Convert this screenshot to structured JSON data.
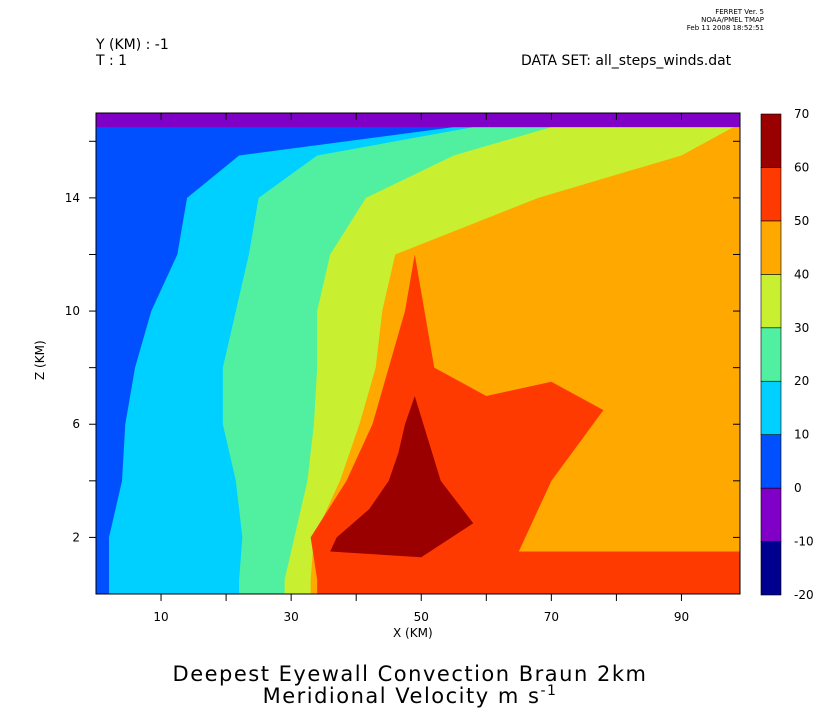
{
  "header": {
    "y_label": "Y (KM) : -1",
    "t_label": "T : 1",
    "dataset": "DATA SET: all_steps_winds.dat",
    "credit_line1": "FERRET Ver. 5",
    "credit_line2": "NOAA/PMEL TMAP",
    "credit_line3": "Feb 11 2008 18:52:51"
  },
  "chart_data": {
    "type": "heatmap",
    "subtype": "filled-contour",
    "title_line1": "Deepest Eyewall Convection Braun 2km",
    "title_line2_text": "Meridional Velocity m s",
    "title_line2_superscript": "-1",
    "xlabel": "X (KM)",
    "ylabel": "Z (KM)",
    "xlim": [
      0,
      99
    ],
    "ylim": [
      0,
      17
    ],
    "x_tick_labels": [
      "10",
      "30",
      "50",
      "70",
      "90"
    ],
    "y_tick_labels": [
      "2",
      "6",
      "10",
      "14"
    ],
    "colorbar": {
      "levels": [
        -20,
        -10,
        0,
        10,
        20,
        30,
        40,
        50,
        60,
        70
      ],
      "tick_labels": [
        "-20",
        "-10",
        "0",
        "10",
        "20",
        "30",
        "40",
        "50",
        "60",
        "70"
      ],
      "colors": [
        "#00008f",
        "#8000c8",
        "#0050ff",
        "#00d0ff",
        "#50f0a0",
        "#c8f030",
        "#ffa800",
        "#ff3a00",
        "#9a0000"
      ]
    },
    "contours": [
      {
        "level": 10,
        "z": [
          0.5,
          2,
          4,
          6,
          8,
          10,
          12,
          14,
          15.5,
          16.5
        ],
        "x": [
          2,
          2,
          4,
          4.5,
          6,
          8.5,
          12.5,
          14,
          22,
          55
        ]
      },
      {
        "level": 20,
        "z": [
          0.5,
          2,
          4,
          6,
          8,
          10,
          12,
          14,
          15.5,
          16.5
        ],
        "x": [
          22,
          22.5,
          21.5,
          19.5,
          19.5,
          21.5,
          23.5,
          25,
          34,
          58
        ]
      },
      {
        "level": 30,
        "z": [
          0.5,
          2,
          4,
          6,
          8,
          10,
          12,
          14,
          15.5,
          16.5
        ],
        "x": [
          29,
          30.5,
          32.5,
          33.5,
          34,
          34,
          36,
          41.5,
          55,
          70
        ]
      },
      {
        "level": 40,
        "z": [
          0.5,
          2,
          4,
          6,
          8,
          10,
          12,
          14,
          15.5,
          16.5
        ],
        "x": [
          33,
          33.5,
          37.5,
          40.5,
          43,
          44,
          46,
          68,
          90,
          98
        ]
      },
      {
        "level": 50,
        "z": [
          0.5,
          2,
          4,
          6,
          8,
          10,
          12
        ],
        "x": [
          34,
          33,
          38.5,
          42.5,
          45,
          47.5,
          49
        ]
      },
      {
        "level": 60,
        "z": [
          1.5,
          2,
          3,
          4,
          5,
          6,
          7
        ],
        "x": [
          36,
          37,
          42,
          45,
          46.5,
          47.5,
          49
        ]
      }
    ],
    "max_region": {
      "value_range": [
        60,
        70
      ],
      "x_range": [
        36,
        58
      ],
      "z_range": [
        1.2,
        7.2
      ]
    },
    "min_region": {
      "value_range": [
        -10,
        0
      ],
      "x_range": [
        0,
        99
      ],
      "z_range": [
        16.5,
        17
      ]
    }
  }
}
